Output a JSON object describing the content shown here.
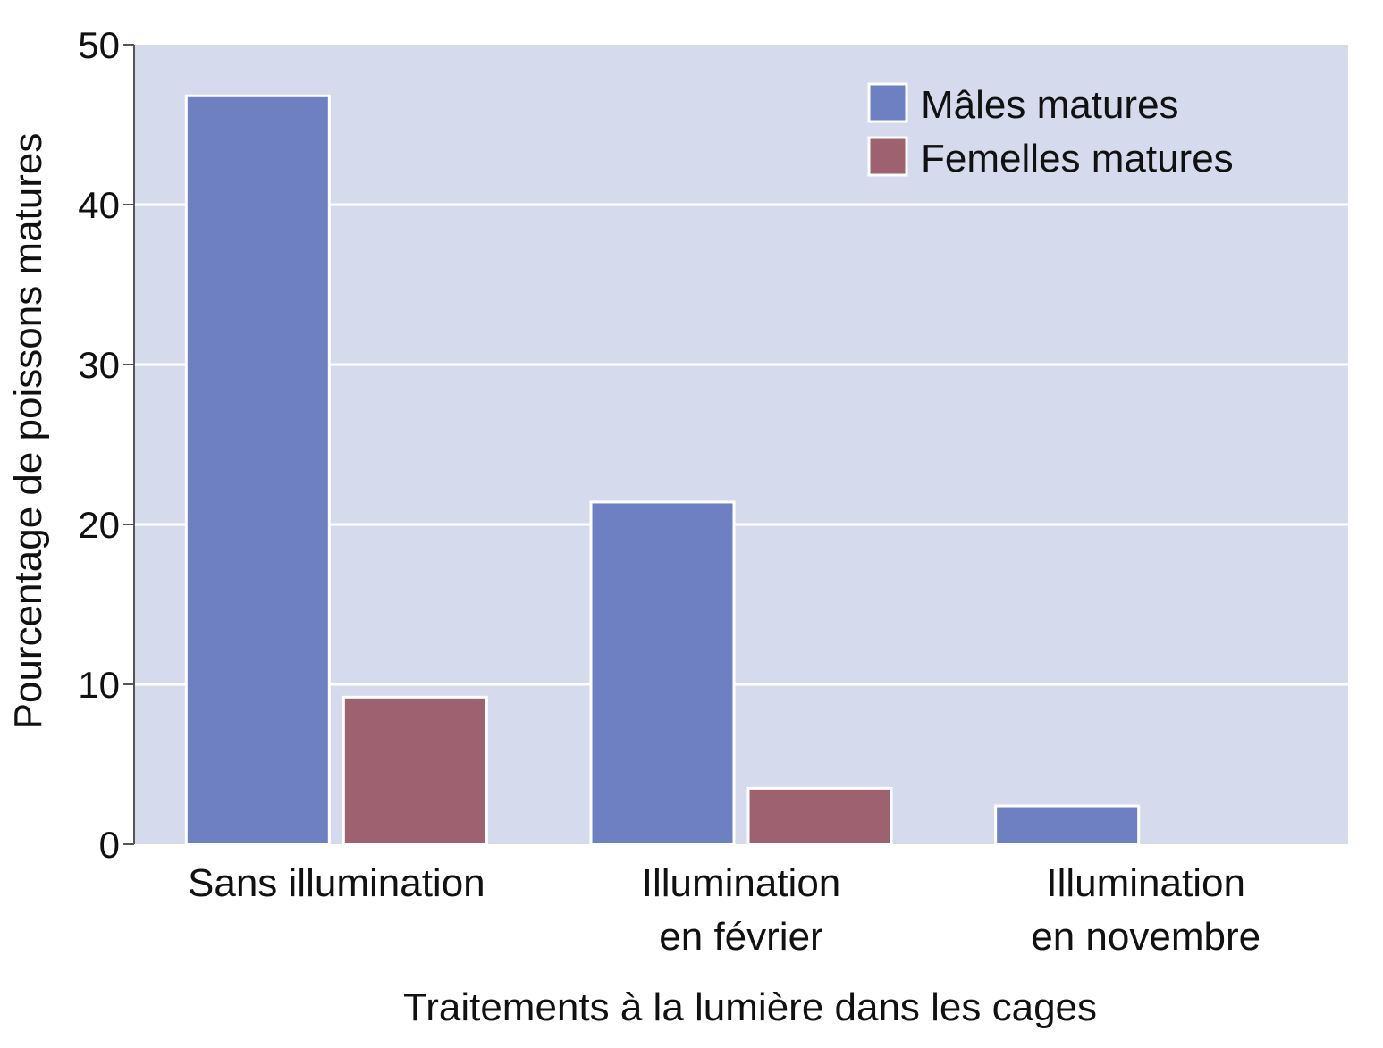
{
  "chart_data": {
    "type": "bar",
    "title": "",
    "xlabel": "Traitements à la lumière dans les cages",
    "ylabel": "Pourcentage de poissons matures",
    "ylim": [
      0,
      50
    ],
    "yticks": [
      0,
      10,
      20,
      30,
      40,
      50
    ],
    "grid": true,
    "legend_position": "top-right",
    "categories": [
      [
        "Sans illumination"
      ],
      [
        "Illumination",
        "en février"
      ],
      [
        "Illumination",
        "en novembre"
      ]
    ],
    "series": [
      {
        "name": "Mâles matures",
        "color": "#6e80c2",
        "values": [
          46.8,
          21.4,
          2.4
        ]
      },
      {
        "name": "Femelles matures",
        "color": "#9e616f",
        "values": [
          9.2,
          3.5,
          0
        ]
      }
    ],
    "colors": {
      "plot_background": "#d5daed",
      "gridline": "#ffffff",
      "bar_outline": "#ffffff",
      "axis": "#555555"
    }
  }
}
